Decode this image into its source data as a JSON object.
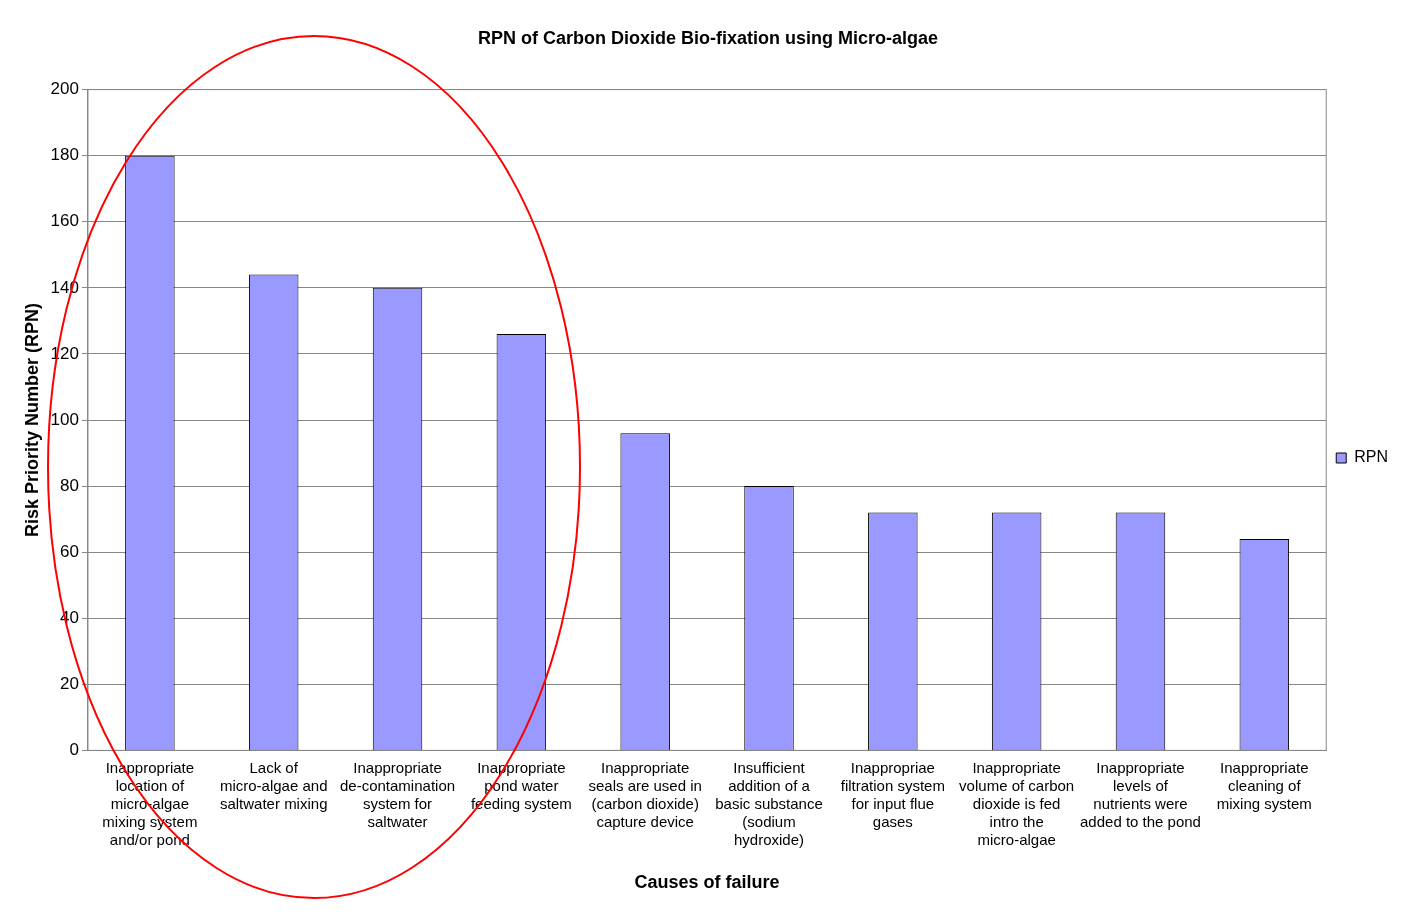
{
  "chart_data": {
    "type": "bar",
    "title": "RPN of Carbon Dioxide Bio-fixation using Micro-algae",
    "xlabel": "Causes of failure",
    "ylabel": "Risk Priority Number (RPN)",
    "categories": [
      "Inappropriate location of micro-algae mixing system and/or pond",
      "Lack of micro-algae and saltwater mixing",
      "Inappropriate de-contamination system for saltwater",
      "Inappropriate pond water feeding system",
      "Inappropriate seals are used in (carbon dioxide) capture device",
      "Insufficient addition of a basic substance (sodium hydroxide)",
      "Inappropriae filtration system for input flue gases",
      "Inappropriate volume of carbon dioxide is fed intro the micro-algae",
      "Inappropriate levels of nutrients were added to the pond",
      "Inappropriate cleaning of mixing system"
    ],
    "series": [
      {
        "name": "RPN",
        "color": "#9999ff",
        "values": [
          180,
          144,
          140,
          126,
          96,
          80,
          72,
          72,
          72,
          64
        ]
      }
    ],
    "ylim": [
      0,
      200
    ],
    "yticks": [
      0,
      20,
      40,
      60,
      80,
      100,
      120,
      140,
      160,
      180,
      200
    ],
    "grid": "y",
    "legend": "right"
  }
}
